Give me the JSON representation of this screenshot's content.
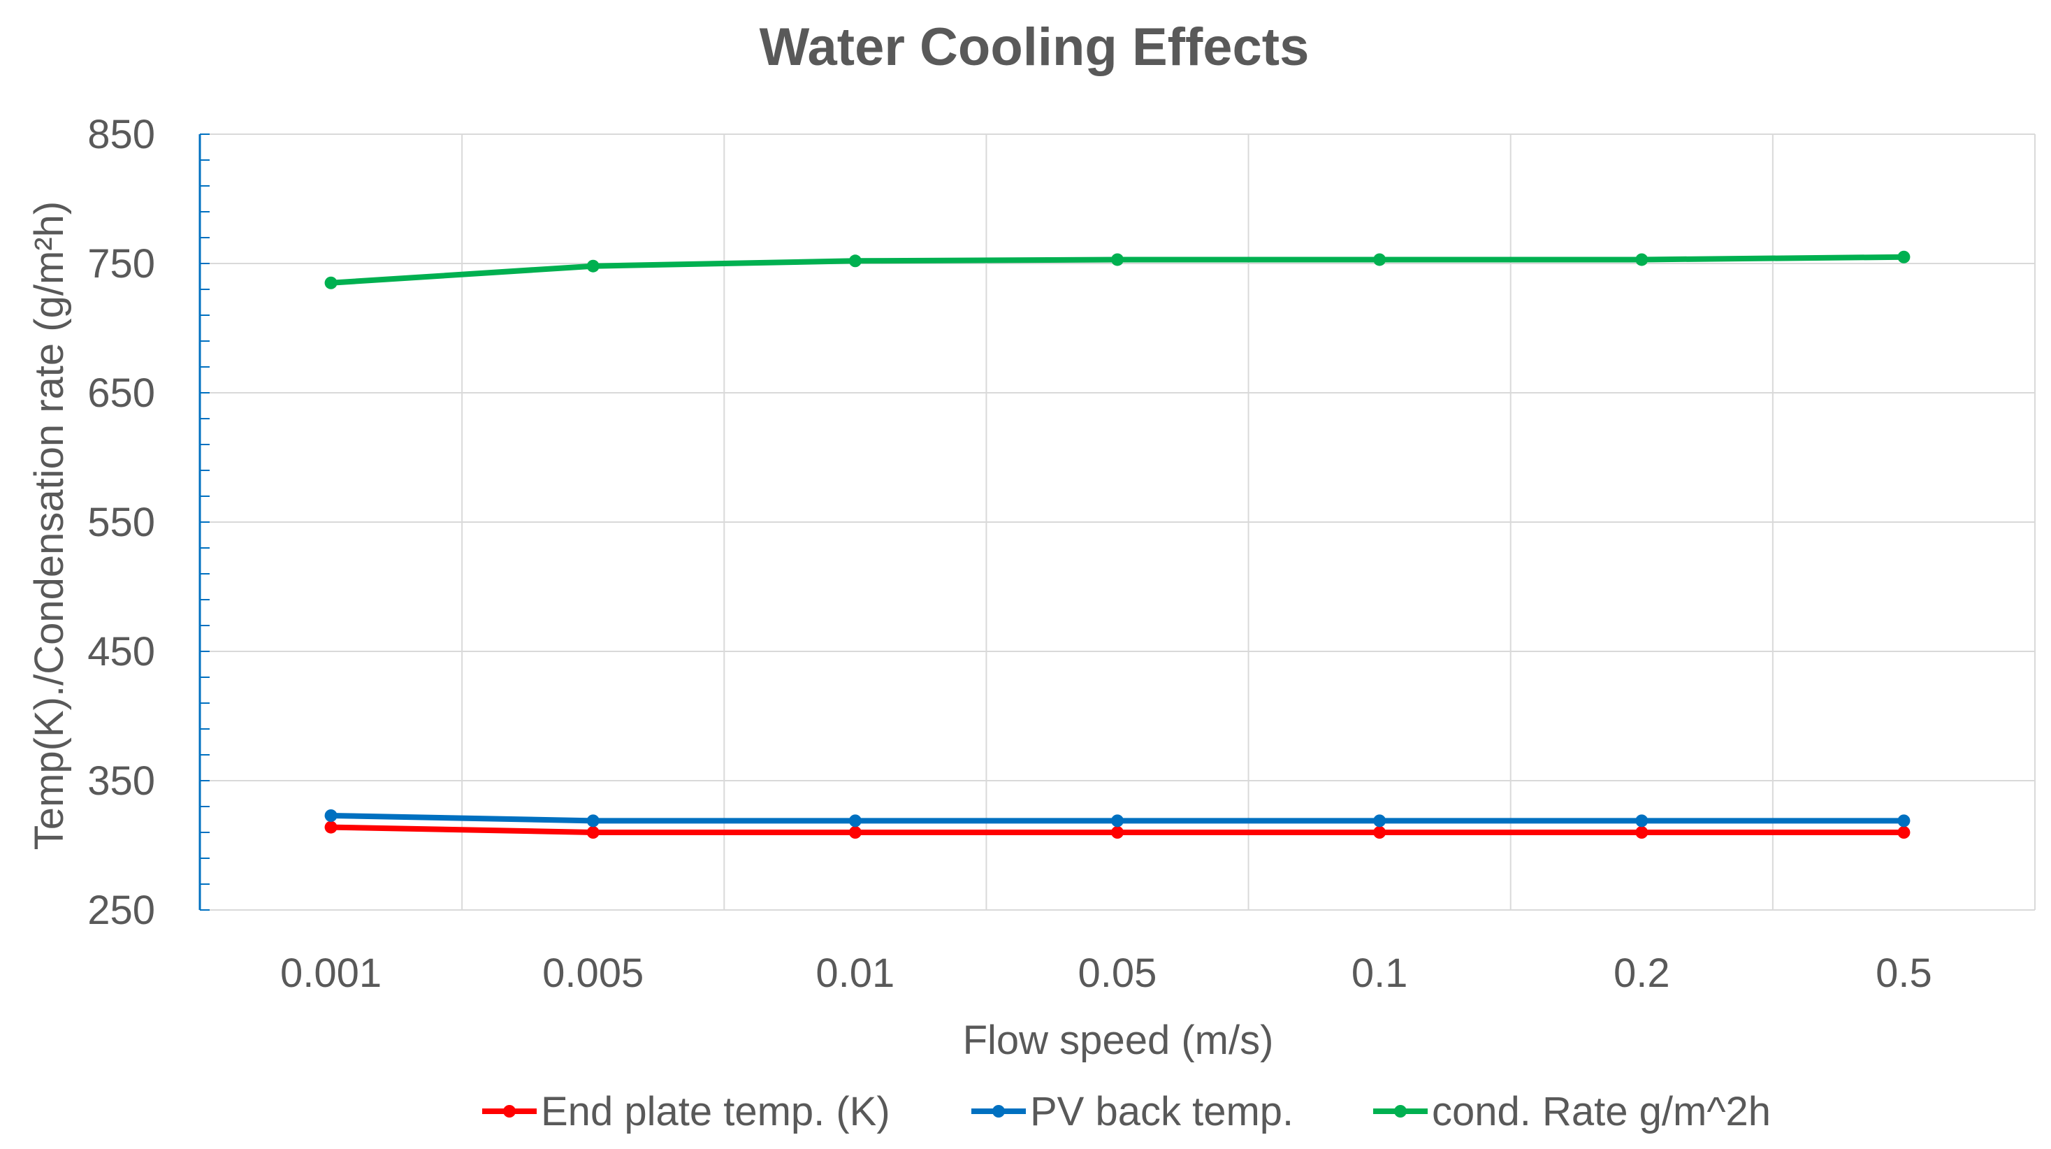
{
  "chart_data": {
    "type": "line",
    "title": "Water Cooling Effects",
    "xlabel": "Flow speed (m/s)",
    "ylabel": "Temp(K)./Condensation rate (g/m²h)",
    "categories": [
      "0.001",
      "0.005",
      "0.01",
      "0.05",
      "0.1",
      "0.2",
      "0.5"
    ],
    "ylim": [
      250,
      850
    ],
    "yticks": [
      "250",
      "350",
      "450",
      "550",
      "650",
      "750",
      "850"
    ],
    "grid": true,
    "legend_position": "bottom",
    "series": [
      {
        "name": "End plate temp. (K)",
        "color": "#ff0000",
        "values": [
          314,
          310,
          310,
          310,
          310,
          310,
          310
        ]
      },
      {
        "name": "PV back temp.",
        "color": "#0070c0",
        "values": [
          323,
          319,
          319,
          319,
          319,
          319,
          319
        ]
      },
      {
        "name": "cond. Rate g/m^2h",
        "color": "#00b050",
        "values": [
          735,
          748,
          752,
          753,
          753,
          753,
          755
        ]
      }
    ]
  }
}
